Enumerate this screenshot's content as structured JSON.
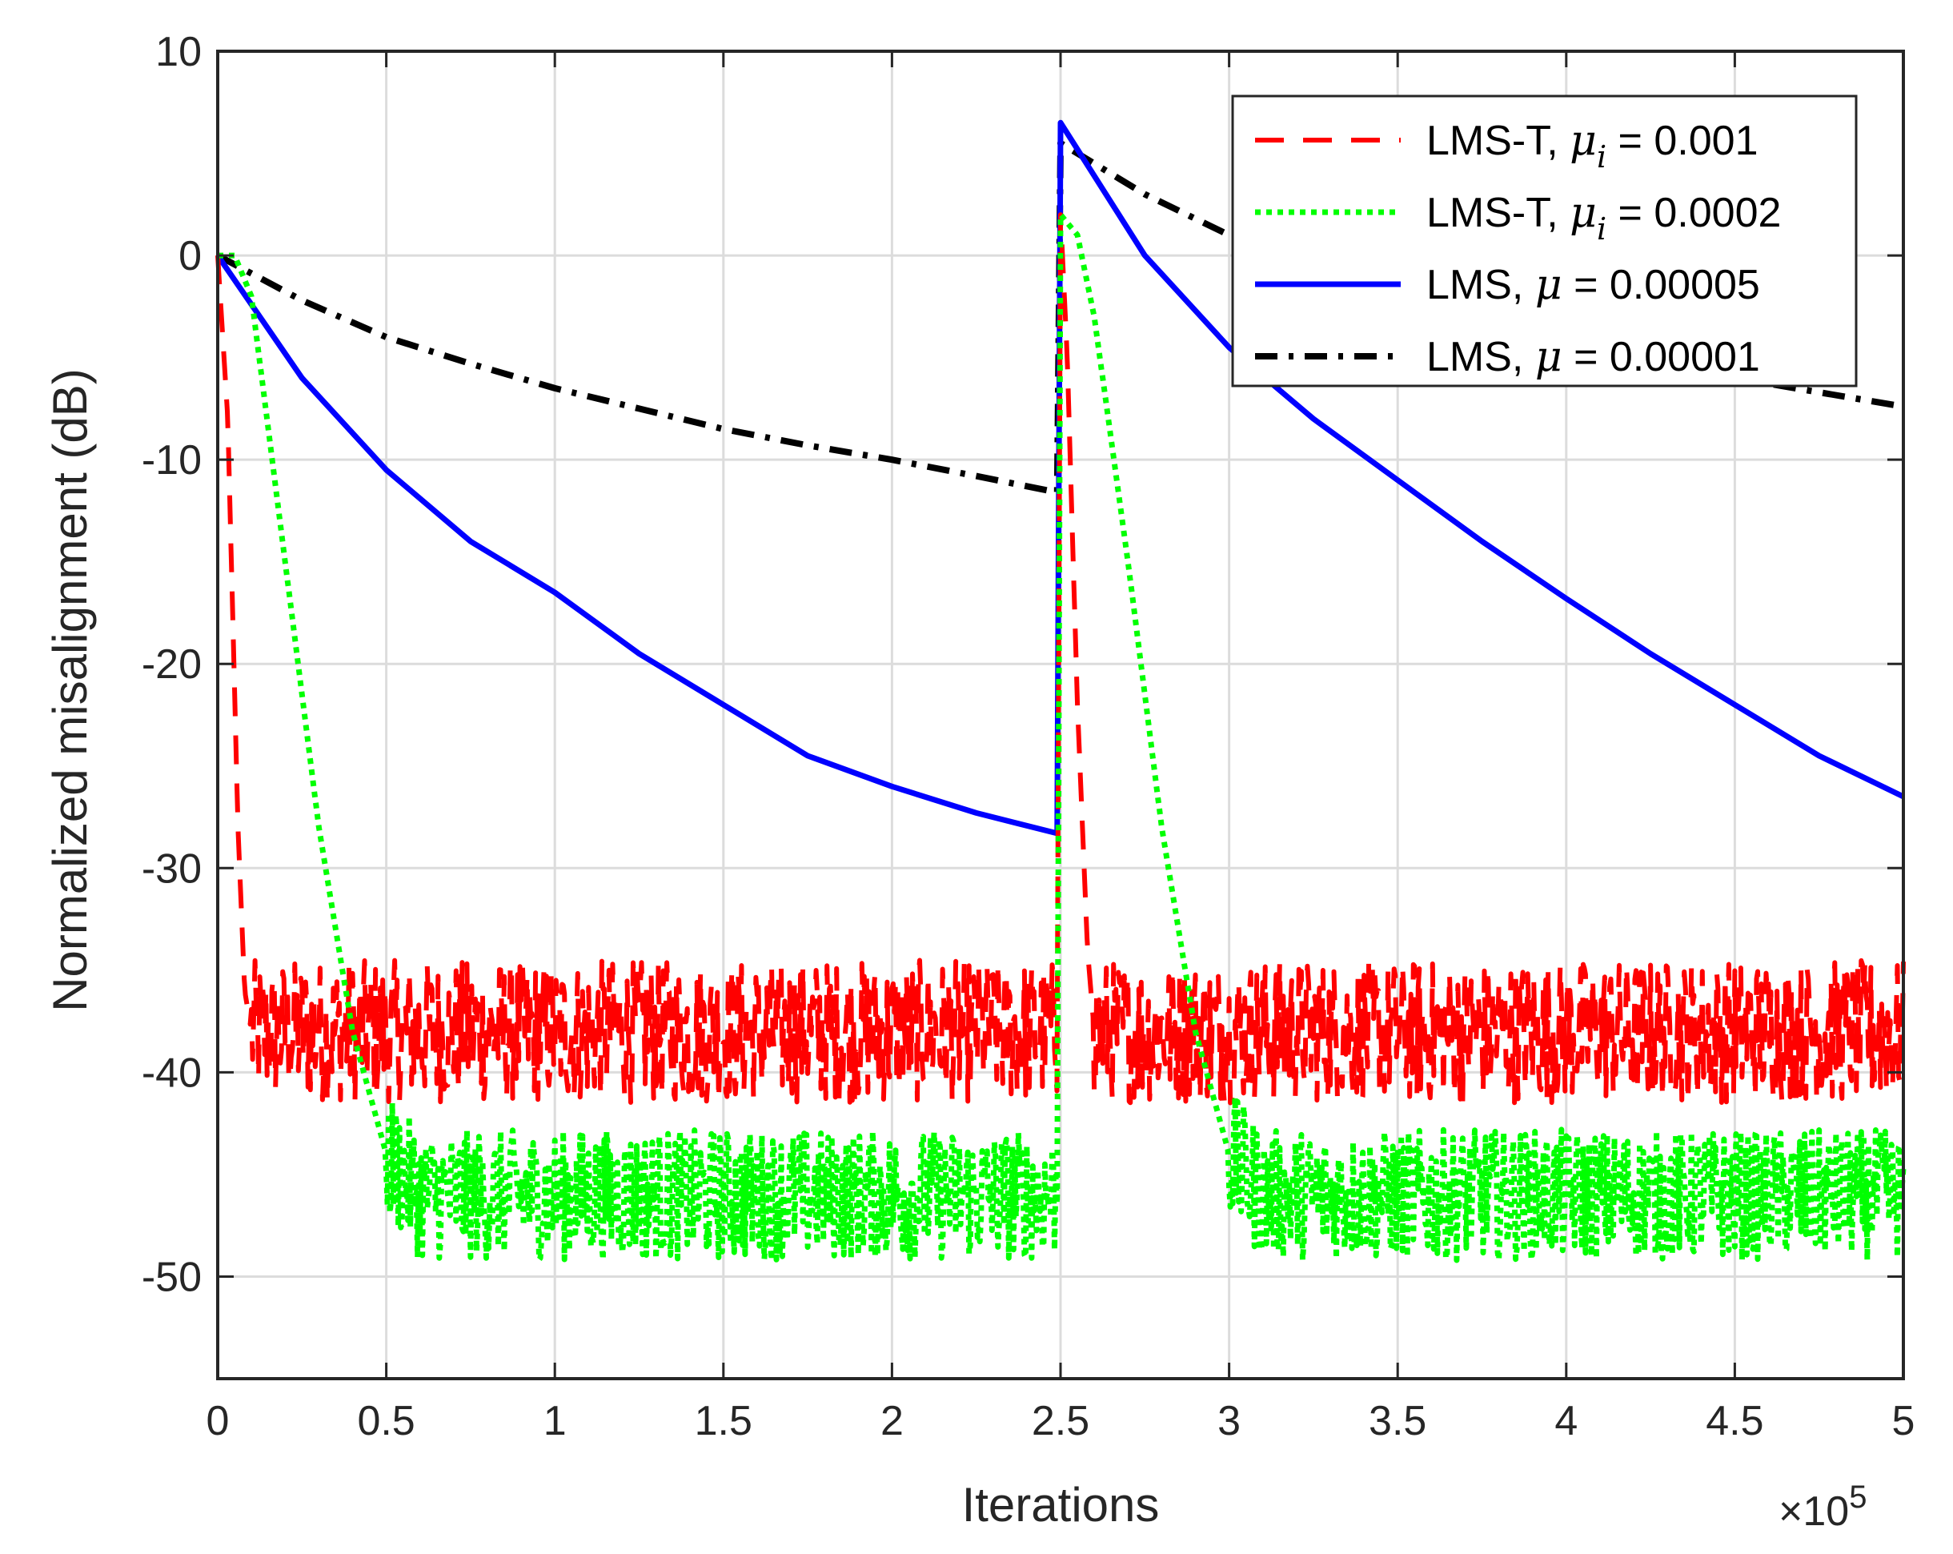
{
  "chart_data": {
    "type": "line",
    "xlabel": "Iterations",
    "ylabel": "Normalized misalignment (dB)",
    "x_exponent_label": "×10",
    "x_exponent_power": "5",
    "xlim": [
      0,
      5
    ],
    "ylim": [
      -55,
      10
    ],
    "x_ticks": [
      "0",
      "0.5",
      "1",
      "1.5",
      "2",
      "2.5",
      "3",
      "3.5",
      "4",
      "4.5",
      "5"
    ],
    "y_ticks": [
      "10",
      "0",
      "-10",
      "-20",
      "-30",
      "-40",
      "-50"
    ],
    "grid": true,
    "legend_position": "top-right",
    "series": [
      {
        "name_prefix": "LMS-T, ",
        "name_symbol": "μ",
        "name_sub": "i",
        "name_suffix": " = 0.001",
        "color": "#ff0000",
        "style": "dashed",
        "x": [
          0,
          0.03,
          0.06,
          0.08,
          0.1,
          0.5,
          1.0,
          1.5,
          2.0,
          2.49,
          2.5,
          2.52,
          2.55,
          2.58,
          2.6,
          3.0,
          3.5,
          4.0,
          4.5,
          5.0
        ],
        "y": [
          0,
          -8,
          -28,
          -36,
          -38,
          -38,
          -38,
          -38,
          -38,
          -38,
          2,
          -5,
          -22,
          -34,
          -38,
          -38,
          -38,
          -38,
          -38,
          -38
        ],
        "noise_start": [
          0.1,
          2.6
        ],
        "noise_end": [
          2.49,
          5.0
        ],
        "noise_amplitude": 3.5
      },
      {
        "name_prefix": "LMS-T, ",
        "name_symbol": "μ",
        "name_sub": "i",
        "name_suffix": " = 0.0002",
        "color": "#00ff00",
        "style": "dotted",
        "x": [
          0,
          0.05,
          0.1,
          0.2,
          0.3,
          0.4,
          0.5,
          0.6,
          1.0,
          1.5,
          2.0,
          2.49,
          2.5,
          2.55,
          2.6,
          2.7,
          2.8,
          2.9,
          3.0,
          3.1,
          3.5,
          4.0,
          4.5,
          5.0
        ],
        "y": [
          0,
          0,
          -2,
          -15,
          -28,
          -38,
          -44,
          -46,
          -46,
          -46,
          -46,
          -46,
          2,
          1,
          -3,
          -15,
          -28,
          -38,
          -44,
          -46,
          -46,
          -46,
          -46,
          -46
        ],
        "noise_start": [
          0.5,
          3.0
        ],
        "noise_end": [
          2.49,
          5.0
        ],
        "noise_amplitude": 3.2
      },
      {
        "name_prefix": "LMS, ",
        "name_symbol": "μ",
        "name_sub": "",
        "name_suffix": " = 0.00005",
        "color": "#0000ff",
        "style": "solid",
        "x": [
          0,
          0.25,
          0.5,
          0.75,
          1.0,
          1.25,
          1.5,
          1.75,
          2.0,
          2.25,
          2.49,
          2.5,
          2.75,
          3.0,
          3.25,
          3.5,
          3.75,
          4.0,
          4.25,
          4.5,
          4.75,
          5.0
        ],
        "y": [
          0,
          -6,
          -10.5,
          -14,
          -16.5,
          -19.5,
          -22,
          -24.5,
          -26,
          -27.3,
          -28.3,
          6.5,
          0,
          -4.5,
          -8,
          -11,
          -14,
          -16.8,
          -19.5,
          -22,
          -24.5,
          -26.5
        ]
      },
      {
        "name_prefix": "LMS, ",
        "name_symbol": "μ",
        "name_sub": "",
        "name_suffix": " = 0.00001",
        "color": "#000000",
        "style": "dashdot",
        "x": [
          0,
          0.25,
          0.5,
          0.75,
          1.0,
          1.25,
          1.5,
          1.75,
          2.0,
          2.25,
          2.49,
          2.5,
          2.75,
          3.0,
          3.25,
          3.5,
          3.75,
          4.0,
          4.25,
          4.5,
          4.75,
          5.0
        ],
        "y": [
          0,
          -2.2,
          -4,
          -5.3,
          -6.5,
          -7.5,
          -8.5,
          -9.3,
          -10,
          -10.8,
          -11.6,
          5.5,
          3,
          1,
          -0.8,
          -2.3,
          -3.5,
          -4.5,
          -5.2,
          -6,
          -6.7,
          -7.4
        ]
      }
    ]
  }
}
